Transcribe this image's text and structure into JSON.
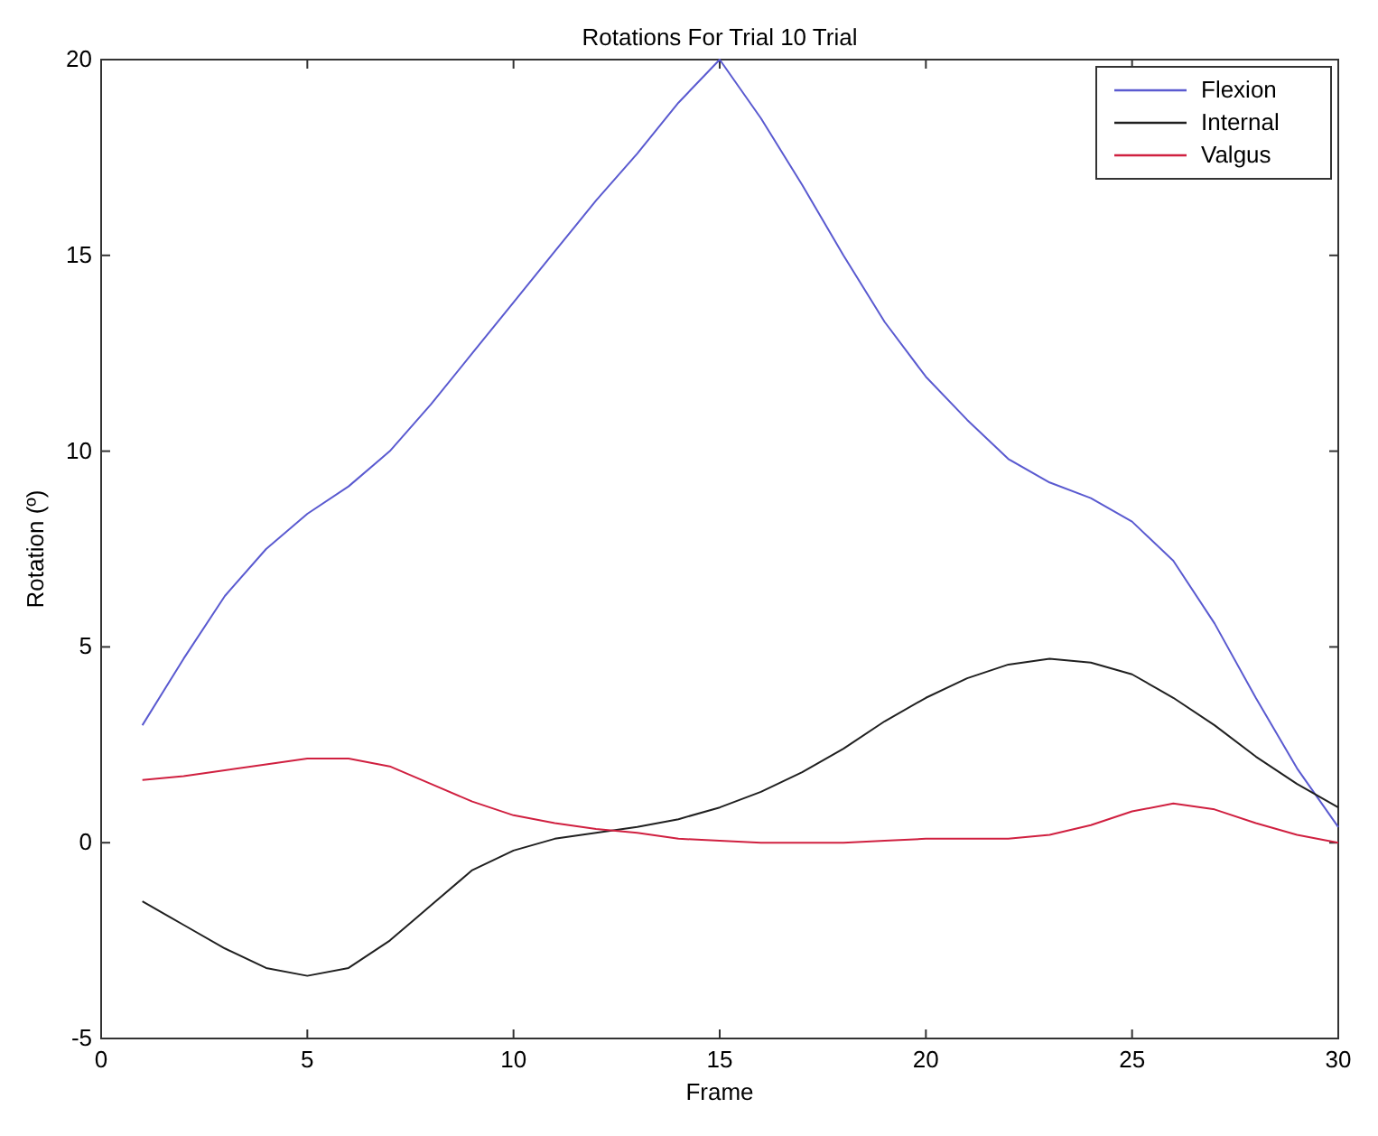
{
  "chart_data": {
    "type": "line",
    "title": "Rotations For Trial 10 Trial",
    "xlabel": "Frame",
    "ylabel": "Rotation (º)",
    "x": [
      1,
      2,
      3,
      4,
      5,
      6,
      7,
      8,
      9,
      10,
      11,
      12,
      13,
      14,
      15,
      16,
      17,
      18,
      19,
      20,
      21,
      22,
      23,
      24,
      25,
      26,
      27,
      28,
      29,
      30
    ],
    "series": [
      {
        "name": "Flexion",
        "color": "#5a5ad0",
        "values": [
          3.0,
          4.7,
          6.3,
          7.5,
          8.4,
          9.1,
          10.0,
          11.2,
          12.5,
          13.8,
          15.1,
          16.4,
          17.6,
          18.9,
          20.0,
          18.5,
          16.8,
          15.0,
          13.3,
          11.9,
          10.8,
          9.8,
          9.2,
          8.8,
          8.2,
          7.2,
          5.6,
          3.7,
          1.9,
          0.4
        ]
      },
      {
        "name": "Internal",
        "color": "#202020",
        "values": [
          -1.5,
          -2.1,
          -2.7,
          -3.2,
          -3.4,
          -3.2,
          -2.5,
          -1.6,
          -0.7,
          -0.2,
          0.1,
          0.25,
          0.4,
          0.6,
          0.9,
          1.3,
          1.8,
          2.4,
          3.1,
          3.7,
          4.2,
          4.55,
          4.7,
          4.6,
          4.3,
          3.7,
          3.0,
          2.2,
          1.5,
          0.9
        ]
      },
      {
        "name": "Valgus",
        "color": "#d02040",
        "values": [
          1.6,
          1.7,
          1.85,
          2.0,
          2.15,
          2.15,
          1.95,
          1.5,
          1.05,
          0.7,
          0.5,
          0.35,
          0.25,
          0.1,
          0.05,
          0.0,
          0.0,
          0.0,
          0.05,
          0.1,
          0.1,
          0.1,
          0.2,
          0.45,
          0.8,
          1.0,
          0.85,
          0.5,
          0.2,
          0.0
        ]
      }
    ],
    "xlim": [
      0,
      30
    ],
    "xticks": [
      0,
      5,
      10,
      15,
      20,
      25,
      30
    ],
    "ylim": [
      -5,
      20
    ],
    "yticks": [
      -5,
      0,
      5,
      10,
      15,
      20
    ],
    "grid": false,
    "legend": "top right",
    "line_style": "solid"
  }
}
